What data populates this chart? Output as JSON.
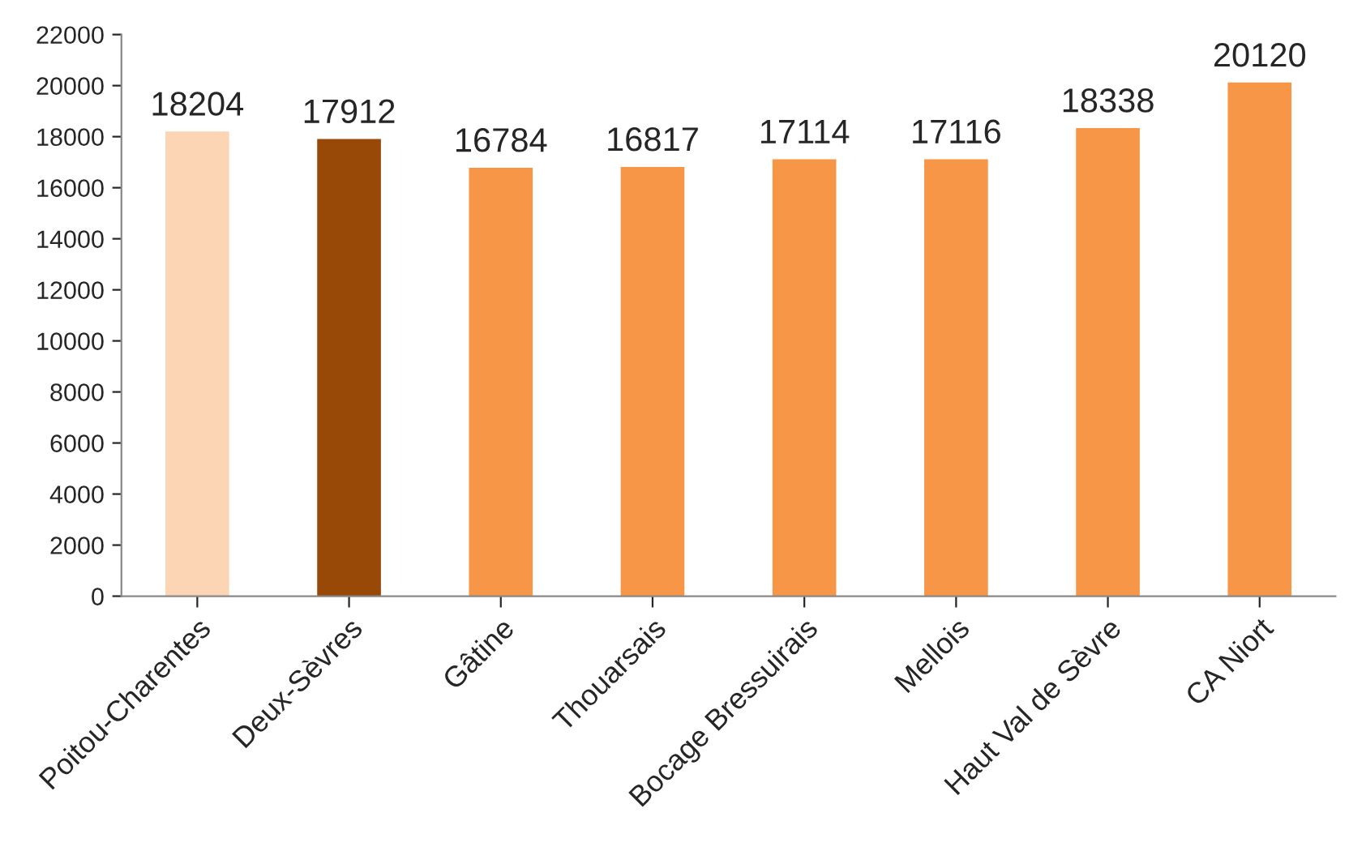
{
  "chart_data": {
    "type": "bar",
    "categories": [
      "Poitou-Charentes",
      "Deux-Sèvres",
      "Gâtine",
      "Thouarsais",
      "Bocage Bressuirais",
      "Mellois",
      "Haut Val de Sèvre",
      "CA Niort"
    ],
    "values": [
      18204,
      17912,
      16784,
      16817,
      17114,
      17116,
      18338,
      20120
    ],
    "colors": [
      "#fcd5b4",
      "#984807",
      "#f79646",
      "#f79646",
      "#f79646",
      "#f79646",
      "#f79646",
      "#f79646"
    ],
    "ylim": [
      0,
      22000
    ],
    "yticks": [
      0,
      2000,
      4000,
      6000,
      8000,
      10000,
      12000,
      14000,
      16000,
      18000,
      20000,
      22000
    ],
    "data_labels": true,
    "grid": false,
    "legend": false
  }
}
